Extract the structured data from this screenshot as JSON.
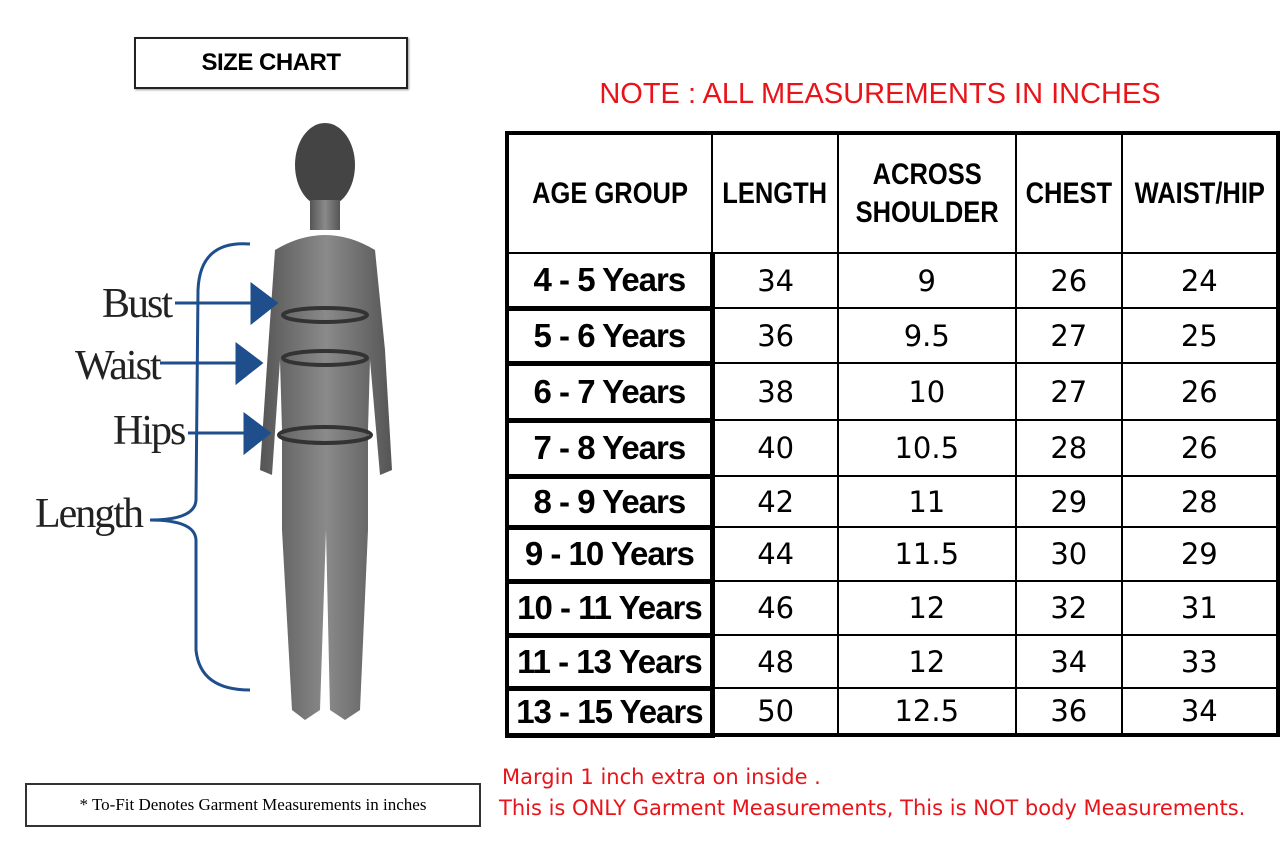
{
  "title": "SIZE CHART",
  "note": "NOTE : ALL MEASUREMENTS IN INCHES",
  "figure": {
    "labels": {
      "bust": "Bust",
      "waist": "Waist",
      "hips": "Hips",
      "length": "Length"
    },
    "arrow_color": "#1f4e8c"
  },
  "table": {
    "headers": [
      "AGE GROUP",
      "LENGTH",
      "ACROSS SHOULDER",
      "CHEST",
      "WAIST/HIP"
    ],
    "rows": [
      [
        "4 - 5 Years",
        "34",
        "9",
        "26",
        "24"
      ],
      [
        "5 - 6 Years",
        "36",
        "9.5",
        "27",
        "25"
      ],
      [
        "6 - 7 Years",
        "38",
        "10",
        "27",
        "26"
      ],
      [
        "7 - 8 Years",
        "40",
        "10.5",
        "28",
        "26"
      ],
      [
        "8 - 9 Years",
        "42",
        "11",
        "29",
        "28"
      ],
      [
        "9 - 10 Years",
        "44",
        "11.5",
        "30",
        "29"
      ],
      [
        "10 - 11 Years",
        "46",
        "12",
        "32",
        "31"
      ],
      [
        "11 - 13 Years",
        "48",
        "12",
        "34",
        "33"
      ],
      [
        "13 - 15 Years",
        "50",
        "12.5",
        "36",
        "34"
      ]
    ]
  },
  "footnote": "* To-Fit Denotes Garment Measurements in inches",
  "remarks": [
    "Margin 1 inch extra on inside .",
    "This is ONLY Garment Measurements, This is NOT body Measurements."
  ],
  "note_color": "#e8141a"
}
